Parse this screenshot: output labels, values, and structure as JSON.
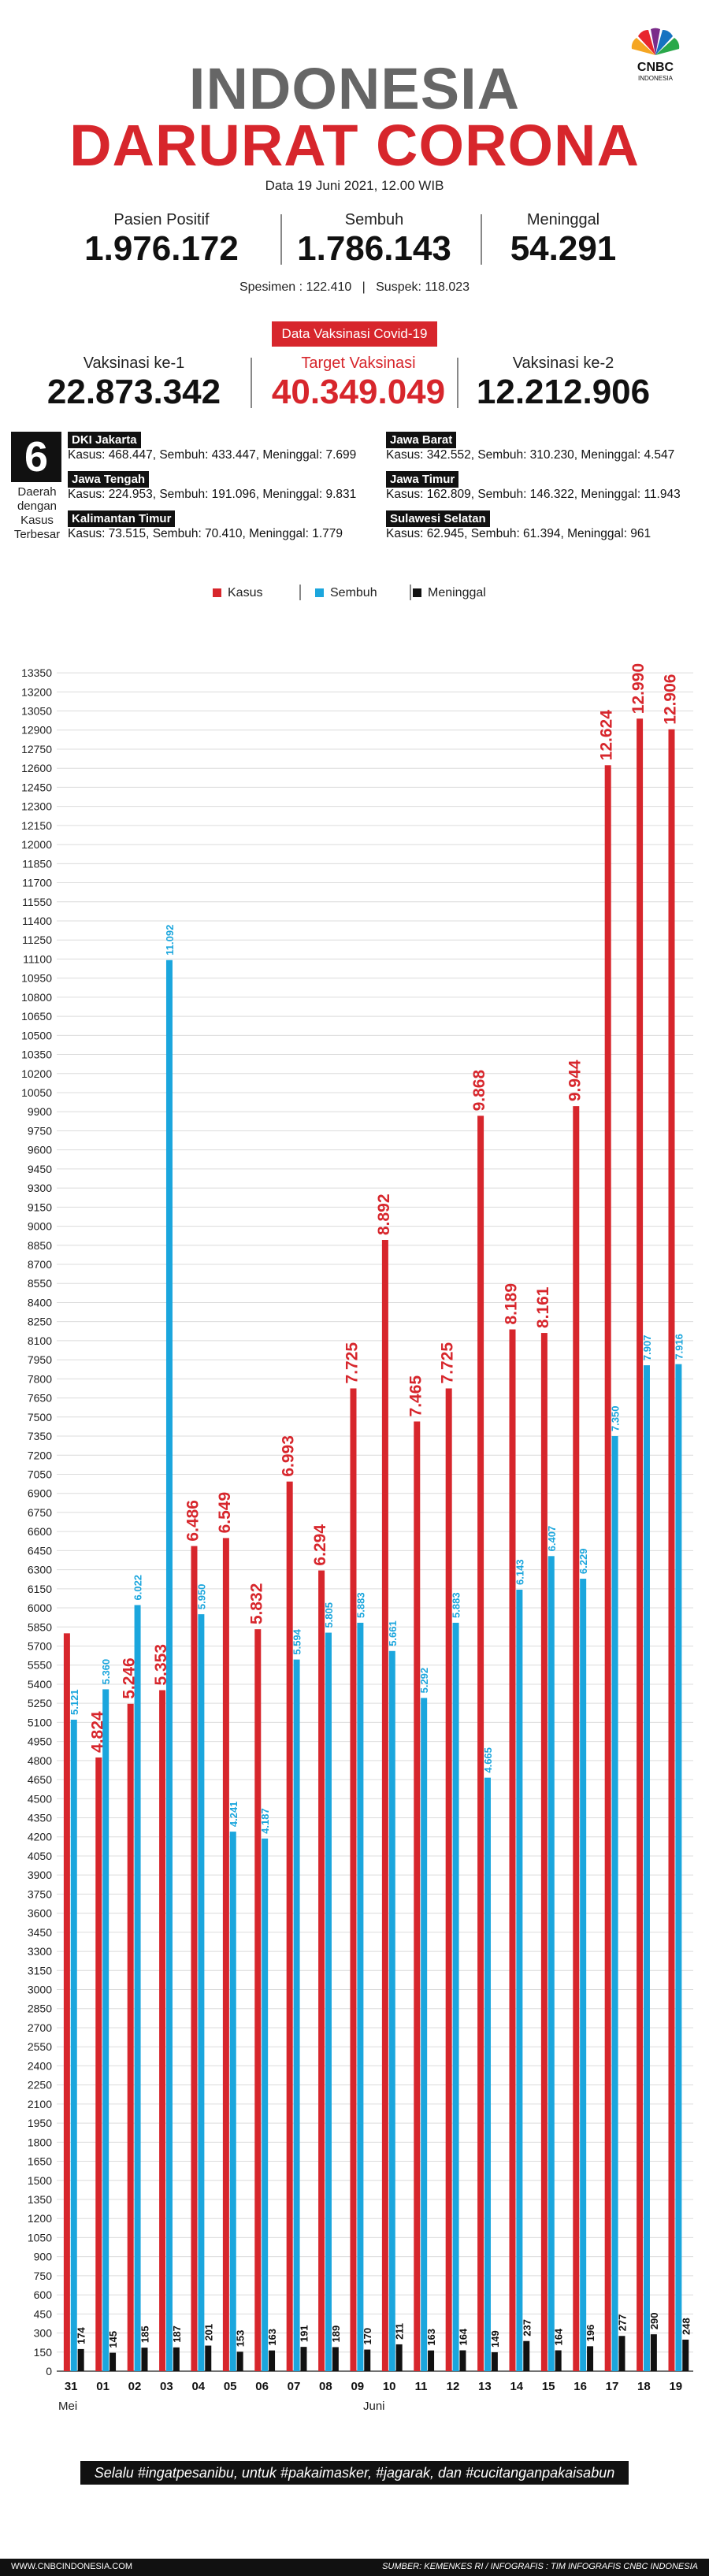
{
  "header": {
    "title_line1": "INDONESIA",
    "title_line2": "DARURAT CORONA",
    "date": "Data 19 Juni 2021, 12.00 WIB",
    "logo_text": "CNBC",
    "logo_subtext": "INDONESIA",
    "logo_icon": "peacock-logo-icon"
  },
  "summary": {
    "positif_label": "Pasien Positif",
    "positif_value": "1.976.172",
    "sembuh_label": "Sembuh",
    "sembuh_value": "1.786.143",
    "meninggal_label": "Meninggal",
    "meninggal_value": "54.291",
    "spesimen_text": "Spesimen : 122.410",
    "suspek_text": "Suspek: 118.023"
  },
  "vaccination": {
    "header": "Data Vaksinasi Covid-19",
    "vax1_label": "Vaksinasi ke-1",
    "vax1_value": "22.873.342",
    "target_label": "Target Vaksinasi",
    "target_value": "40.349.049",
    "vax2_label": "Vaksinasi ke-2",
    "vax2_value": "12.212.906"
  },
  "regions": {
    "count": "6",
    "label_lines": [
      "Daerah",
      "dengan",
      "Kasus",
      "Terbesar"
    ],
    "items": [
      {
        "name": "DKI Jakarta",
        "stats": "Kasus: 468.447, Sembuh: 433.447, Meninggal: 7.699"
      },
      {
        "name": "Jawa Barat",
        "stats": "Kasus: 342.552, Sembuh: 310.230, Meninggal: 4.547"
      },
      {
        "name": "Jawa Tengah",
        "stats": "Kasus: 224.953, Sembuh: 191.096, Meninggal: 9.831"
      },
      {
        "name": "Jawa Timur",
        "stats": "Kasus: 162.809, Sembuh: 146.322, Meninggal: 11.943"
      },
      {
        "name": "Kalimantan Timur",
        "stats": "Kasus: 73.515, Sembuh: 70.410, Meninggal: 1.779"
      },
      {
        "name": "Sulawesi Selatan",
        "stats": "Kasus: 62.945, Sembuh: 61.394, Meninggal: 961"
      }
    ]
  },
  "legend": {
    "kasus": "Kasus",
    "sembuh": "Sembuh",
    "meninggal": "Meninggal"
  },
  "colors": {
    "kasus": "#d7262c",
    "sembuh": "#1ba6dd",
    "meninggal": "#111111",
    "accent": "#d7262c",
    "title_gray": "#666666"
  },
  "chart_data": {
    "type": "bar",
    "categories": [
      "31",
      "01",
      "02",
      "03",
      "04",
      "05",
      "06",
      "07",
      "08",
      "09",
      "10",
      "11",
      "12",
      "13",
      "14",
      "15",
      "16",
      "17",
      "18",
      "19"
    ],
    "month_labels": {
      "mei": "Mei",
      "juni": "Juni"
    },
    "series": [
      {
        "name": "Kasus",
        "values": [
          5800,
          4824,
          5246,
          5353,
          6486,
          6549,
          5832,
          6993,
          6294,
          7725,
          8892,
          7465,
          7725,
          9868,
          8189,
          8161,
          9944,
          12624,
          12990,
          12906
        ],
        "labels": [
          "",
          "4.824",
          "5.246",
          "5.353",
          "6.486",
          "6.549",
          "5.832",
          "6.993",
          "6.294",
          "7.725",
          "8.892",
          "7.465",
          "7.725",
          "9.868",
          "8.189",
          "8.161",
          "9.944",
          "12.624",
          "12.990",
          "12.906"
        ]
      },
      {
        "name": "Sembuh",
        "values": [
          5121,
          5360,
          6022,
          11092,
          5950,
          4241,
          4187,
          5594,
          5805,
          5883,
          5661,
          5292,
          5883,
          4665,
          6143,
          6407,
          6229,
          7350,
          7907,
          7916
        ],
        "labels": [
          "5.121",
          "5.360",
          "6.022",
          "11.092",
          "5.950",
          "4.241",
          "4.187",
          "5.594",
          "5.805",
          "5.883",
          "5.661",
          "5.292",
          "5.883",
          "4.665",
          "6.143",
          "6.407",
          "6.229",
          "7.350",
          "7.907",
          "7.916"
        ]
      },
      {
        "name": "Meninggal",
        "values": [
          174,
          145,
          185,
          187,
          201,
          153,
          163,
          191,
          189,
          170,
          211,
          163,
          164,
          149,
          237,
          164,
          196,
          277,
          290,
          248
        ],
        "labels": [
          "174",
          "145",
          "185",
          "187",
          "201",
          "153",
          "163",
          "191",
          "189",
          "170",
          "211",
          "163",
          "164",
          "149",
          "237",
          "164",
          "196",
          "277",
          "290",
          "248"
        ]
      }
    ],
    "ylim": [
      0,
      13400
    ],
    "ytick_step": 150,
    "grid": true,
    "legend_position": "top-center"
  },
  "footer": {
    "hashtag_text": "Selalu #ingatpesanibu, untuk #pakaimasker, #jagarak, dan #cucitanganpakaisabun",
    "site": "WWW.CNBCINDONESIA.COM",
    "source": "SUMBER: KEMENKES RI / INFOGRAFIS : TIM INFOGRAFIS CNBC INDONESIA"
  }
}
